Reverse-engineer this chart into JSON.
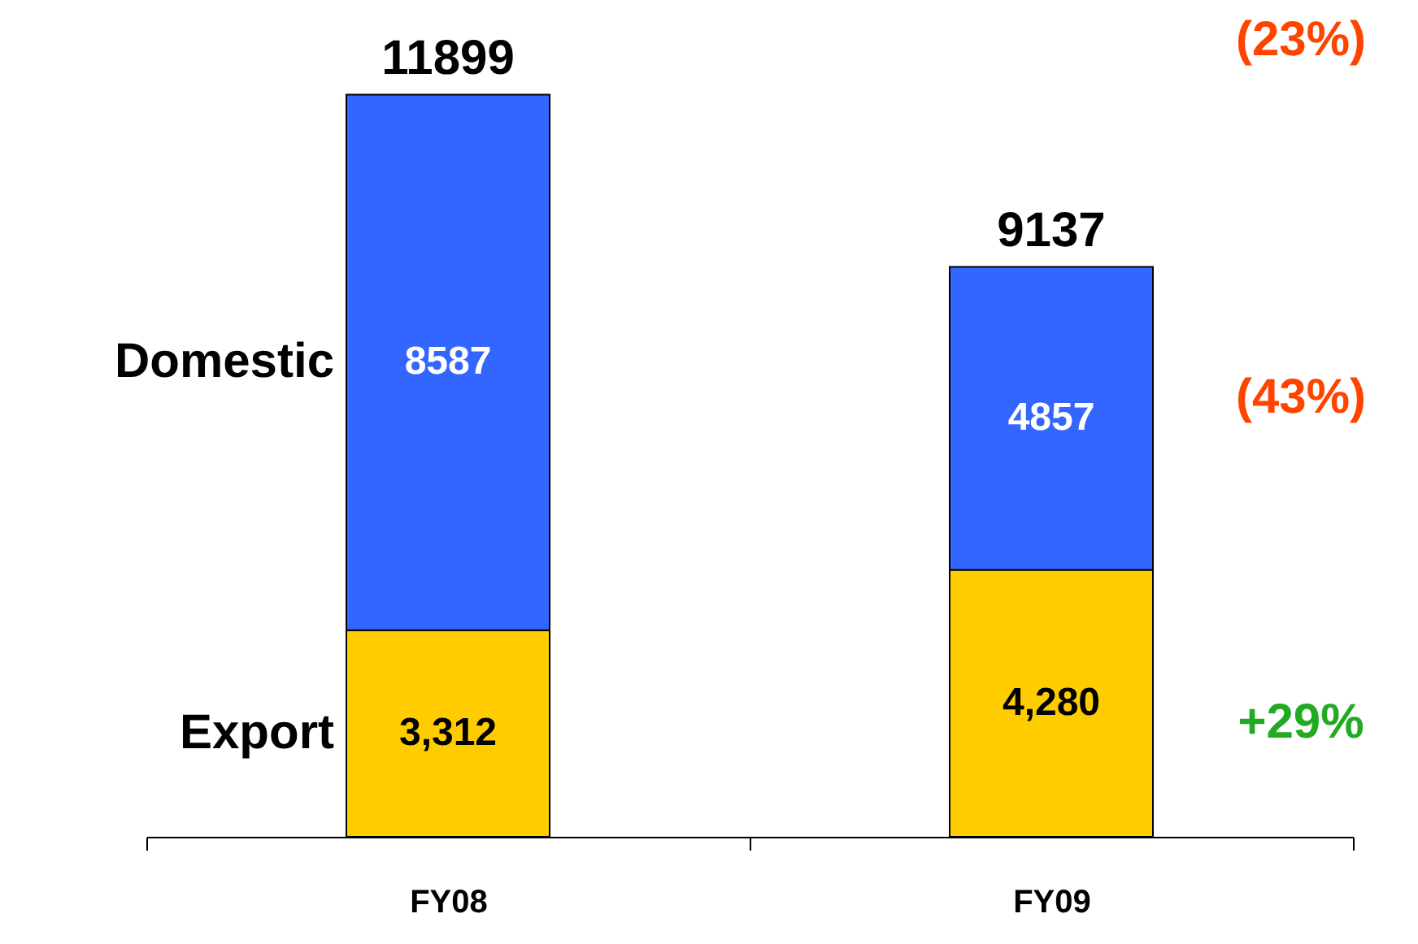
{
  "chart_data": {
    "type": "bar",
    "stacked": true,
    "categories": [
      "FY08",
      "FY09"
    ],
    "series": [
      {
        "name": "Export",
        "color": "#ffcc00",
        "values": [
          3312,
          4280
        ],
        "value_labels": [
          "3,312",
          "4,280"
        ]
      },
      {
        "name": "Domestic",
        "color": "#3366ff",
        "values": [
          8587,
          4857
        ],
        "value_labels": [
          "8587",
          "4857"
        ]
      }
    ],
    "totals": [
      "11899",
      "9137"
    ],
    "annotations": [
      "(23%)",
      "(43%)",
      "+29%"
    ],
    "legend": false
  }
}
